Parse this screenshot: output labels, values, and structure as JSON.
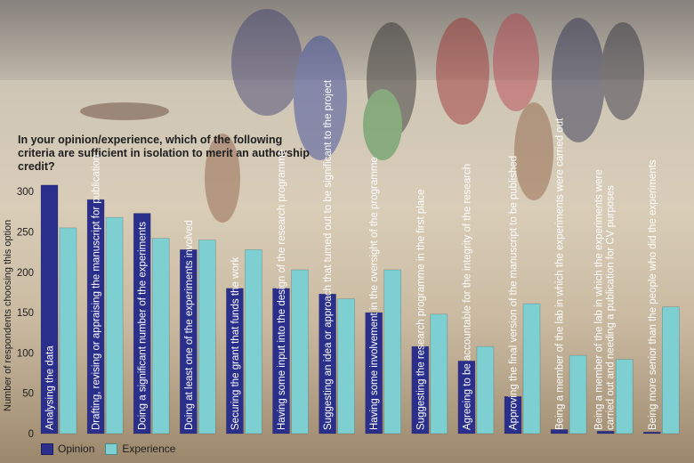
{
  "question": "In your opinion/experience, which of the following criteria are sufficient in isolation to merit an authorship credit?",
  "colors": {
    "opinion": "#2b2f8c",
    "experience": "#7ecfd1",
    "background": "photo of triathlon swimmers running on a beach"
  },
  "chart_data": {
    "type": "bar",
    "ylabel": "Number of respondents choosing this option",
    "ylim": [
      0,
      320
    ],
    "yticks": [
      0,
      50,
      100,
      150,
      200,
      250,
      300
    ],
    "categories": [
      "Analysing the data",
      "Drafting, revising or appraising the manuscript for publication",
      "Doing a significant number of the experiments",
      "Doing at least one of the experiments involved",
      "Securing the grant that funds the work",
      "Having some input into the design of the research programme",
      "Suggesting an idea or approach that turned out to be significant to the project",
      "Having some involvement in the oversight of the programme",
      "Suggesting the research programme in the first place",
      "Agreeing to be accountable for the integrity of the research",
      "Approving the final version of the manuscript to be published",
      "Being a member of the lab in which the experiments were carried out",
      "Being a member of the lab in which the experiments were carried out and needing a publication for CV purposes",
      "Being more senior than the people who did the experiments"
    ],
    "series": [
      {
        "name": "Opinion",
        "values": [
          308,
          290,
          273,
          228,
          180,
          180,
          173,
          150,
          108,
          90,
          46,
          5,
          3,
          2
        ]
      },
      {
        "name": "Experience",
        "values": [
          255,
          268,
          242,
          240,
          228,
          203,
          167,
          203,
          148,
          108,
          161,
          97,
          92,
          157
        ]
      }
    ],
    "legend": "bottom-left",
    "grid": false
  }
}
